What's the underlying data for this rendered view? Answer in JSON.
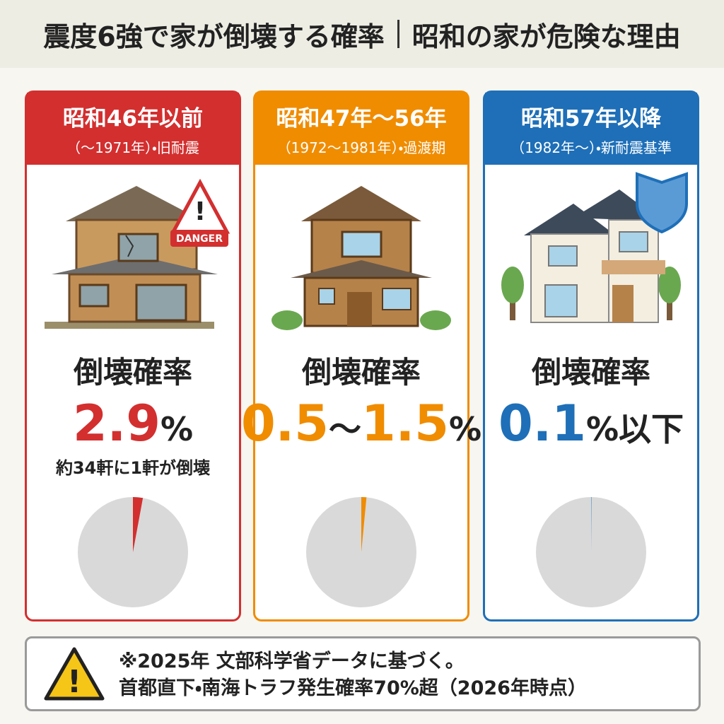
{
  "header": {
    "title": "震度6強で家が倒壊する確率",
    "subtitle": "昭和の家が危険な理由"
  },
  "cards": [
    {
      "era": "昭和46年以前",
      "period": "（〜1971年）・旧耐震",
      "badge": "DANGER",
      "label": "倒壊確率",
      "rate": {
        "value": 2.9,
        "unit": "%"
      },
      "note": "約34軒に1軒が倒壊"
    },
    {
      "era": "昭和47年〜56年",
      "period": "（1972〜1981年）・過渡期",
      "label": "倒壊確率",
      "rate": {
        "low": 0.5,
        "sep": "〜",
        "high": 1.5,
        "unit": "%"
      }
    },
    {
      "era": "昭和57年以降",
      "period": "（1982年〜）・新耐震基準",
      "label": "倒壊確率",
      "rate": {
        "value": 0.1,
        "unit": "%以下"
      }
    }
  ],
  "footer": {
    "line1": "※2025年 文部科学省データに基づく。",
    "line2": "首都直下・南海トラフ発生確率70%超（2026年時点）"
  }
}
